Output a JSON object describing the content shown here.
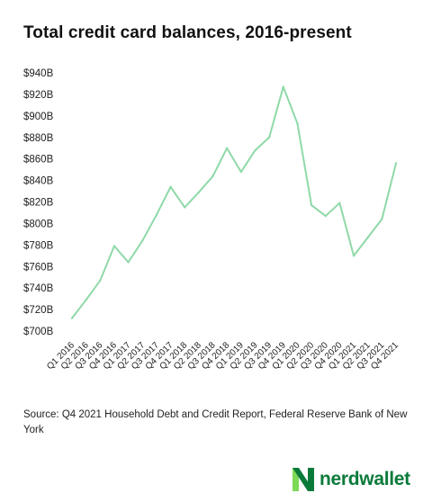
{
  "title": "Total credit card balances, 2016-present",
  "source": "Source: Q4 2021 Household Debt and Credit Report, Federal Reserve Bank of New York",
  "brand": {
    "logo_text": "nerdwallet",
    "logo_icon": "nerdwallet-logo-icon",
    "color_dark": "#0a7a3a",
    "color_light": "#7ed957"
  },
  "chart_data": {
    "type": "line",
    "title": "Total credit card balances, 2016-present",
    "xlabel": "",
    "ylabel": "",
    "grid": false,
    "legend": "none",
    "line_color": "#8fd9a8",
    "ylim": [
      700,
      940
    ],
    "y_ticks": [
      700,
      720,
      740,
      760,
      780,
      800,
      820,
      840,
      860,
      880,
      900,
      920,
      940
    ],
    "y_tick_labels": [
      "$700B",
      "$720B",
      "$740B",
      "$760B",
      "$780B",
      "$800B",
      "$820B",
      "$840B",
      "$860B",
      "$880B",
      "$900B",
      "$920B",
      "$940B"
    ],
    "categories": [
      "Q1 2016",
      "Q2 2016",
      "Q3 2016",
      "Q4 2016",
      "Q1 2017",
      "Q2 2017",
      "Q3 2017",
      "Q4 2017",
      "Q1 2018",
      "Q2 2018",
      "Q3 2018",
      "Q4 2018",
      "Q1 2019",
      "Q2 2019",
      "Q3 2019",
      "Q4 2019",
      "Q1 2020",
      "Q2 2020",
      "Q3 2020",
      "Q4 2020",
      "Q1 2021",
      "Q2 2021",
      "Q3 2021",
      "Q4 2021"
    ],
    "values": [
      712,
      729,
      747,
      779,
      764,
      784,
      808,
      834,
      815,
      829,
      844,
      870,
      848,
      868,
      880,
      927,
      893,
      817,
      807,
      819,
      770,
      787,
      804,
      856
    ]
  }
}
